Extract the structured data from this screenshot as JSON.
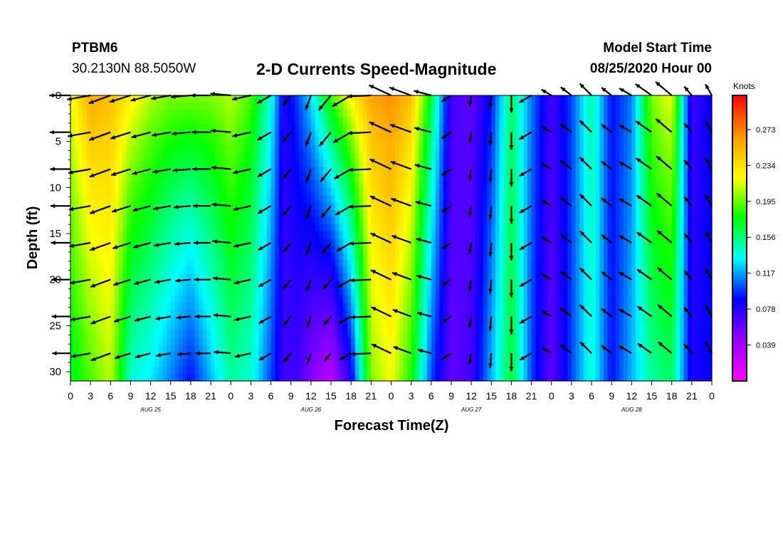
{
  "header": {
    "station": "PTBM6",
    "coordinates": "30.2130N 88.5050W",
    "model_start_label": "Model Start Time",
    "model_start_value": "08/25/2020 Hour 00"
  },
  "chart_data": {
    "type": "heatmap",
    "title": "2-D Currents Speed-Magnitude",
    "xlabel": "Forecast Time(Z)",
    "ylabel": "Depth (ft)",
    "x_ticks": [
      "0",
      "3",
      "6",
      "9",
      "12",
      "15",
      "18",
      "21",
      "0",
      "3",
      "6",
      "9",
      "12",
      "15",
      "18",
      "21",
      "0",
      "3",
      "6",
      "9",
      "12",
      "15",
      "18",
      "21",
      "0",
      "3",
      "6",
      "9",
      "12",
      "15",
      "18",
      "21",
      "0"
    ],
    "x_range_hours": [
      0,
      96
    ],
    "day_labels": [
      {
        "text": "AUG 25",
        "hour": 12
      },
      {
        "text": "AUG 26",
        "hour": 36
      },
      {
        "text": "AUG 27",
        "hour": 60
      },
      {
        "text": "AUG 28",
        "hour": 84
      }
    ],
    "y_ticks": [
      0,
      5,
      10,
      15,
      20,
      25,
      30
    ],
    "y_range_ft": [
      0,
      31
    ],
    "colorbar": {
      "unit": "Knots",
      "ticks": [
        0.273,
        0.234,
        0.195,
        0.156,
        0.117,
        0.078,
        0.039
      ],
      "range": [
        0.0,
        0.31
      ],
      "colors": [
        "#ff00ff",
        "#9900ff",
        "#0000ff",
        "#00ffff",
        "#00ff00",
        "#ffff00",
        "#ff9900",
        "#ff0000"
      ]
    },
    "speed_profile_knots": [
      {
        "hour": 0,
        "surface": 0.22,
        "bottom": 0.17
      },
      {
        "hour": 3,
        "surface": 0.26,
        "bottom": 0.19
      },
      {
        "hour": 6,
        "surface": 0.25,
        "bottom": 0.21
      },
      {
        "hour": 9,
        "surface": 0.23,
        "bottom": 0.14
      },
      {
        "hour": 12,
        "surface": 0.21,
        "bottom": 0.13
      },
      {
        "hour": 15,
        "surface": 0.2,
        "bottom": 0.11
      },
      {
        "hour": 18,
        "surface": 0.2,
        "bottom": 0.09
      },
      {
        "hour": 21,
        "surface": 0.2,
        "bottom": 0.12
      },
      {
        "hour": 24,
        "surface": 0.21,
        "bottom": 0.15
      },
      {
        "hour": 27,
        "surface": 0.19,
        "bottom": 0.14
      },
      {
        "hour": 30,
        "surface": 0.14,
        "bottom": 0.1
      },
      {
        "hour": 32,
        "surface": 0.08,
        "bottom": 0.07
      },
      {
        "hour": 34,
        "surface": 0.1,
        "bottom": 0.07
      },
      {
        "hour": 36,
        "surface": 0.13,
        "bottom": 0.05
      },
      {
        "hour": 39,
        "surface": 0.19,
        "bottom": 0.03
      },
      {
        "hour": 42,
        "surface": 0.23,
        "bottom": 0.08
      },
      {
        "hour": 45,
        "surface": 0.26,
        "bottom": 0.2
      },
      {
        "hour": 48,
        "surface": 0.27,
        "bottom": 0.22
      },
      {
        "hour": 51,
        "surface": 0.25,
        "bottom": 0.18
      },
      {
        "hour": 54,
        "surface": 0.17,
        "bottom": 0.1
      },
      {
        "hour": 57,
        "surface": 0.07,
        "bottom": 0.06
      },
      {
        "hour": 60,
        "surface": 0.06,
        "bottom": 0.07
      },
      {
        "hour": 63,
        "surface": 0.09,
        "bottom": 0.12
      },
      {
        "hour": 66,
        "surface": 0.16,
        "bottom": 0.17
      },
      {
        "hour": 69,
        "surface": 0.11,
        "bottom": 0.1
      },
      {
        "hour": 72,
        "surface": 0.07,
        "bottom": 0.06
      },
      {
        "hour": 75,
        "surface": 0.1,
        "bottom": 0.1
      },
      {
        "hour": 78,
        "surface": 0.15,
        "bottom": 0.14
      },
      {
        "hour": 81,
        "surface": 0.09,
        "bottom": 0.09
      },
      {
        "hour": 84,
        "surface": 0.11,
        "bottom": 0.12
      },
      {
        "hour": 87,
        "surface": 0.2,
        "bottom": 0.15
      },
      {
        "hour": 90,
        "surface": 0.22,
        "bottom": 0.16
      },
      {
        "hour": 93,
        "surface": 0.07,
        "bottom": 0.08
      },
      {
        "hour": 96,
        "surface": 0.09,
        "bottom": 0.09
      }
    ],
    "vector_depths_ft": [
      0,
      4,
      8,
      12,
      16,
      20,
      24,
      28
    ],
    "vector_direction_deg": [
      {
        "hour": 0,
        "dir": 270
      },
      {
        "hour": 6,
        "dir": 250
      },
      {
        "hour": 12,
        "dir": 255
      },
      {
        "hour": 18,
        "dir": 265
      },
      {
        "hour": 24,
        "dir": 275
      },
      {
        "hour": 30,
        "dir": 240
      },
      {
        "hour": 36,
        "dir": 200
      },
      {
        "hour": 42,
        "dir": 240
      },
      {
        "hour": 48,
        "dir": 295
      },
      {
        "hour": 54,
        "dir": 285
      },
      {
        "hour": 60,
        "dir": 190
      },
      {
        "hour": 66,
        "dir": 180
      },
      {
        "hour": 72,
        "dir": 300
      },
      {
        "hour": 78,
        "dir": 315
      },
      {
        "hour": 84,
        "dir": 300
      },
      {
        "hour": 90,
        "dir": 310
      },
      {
        "hour": 96,
        "dir": 330
      }
    ]
  }
}
